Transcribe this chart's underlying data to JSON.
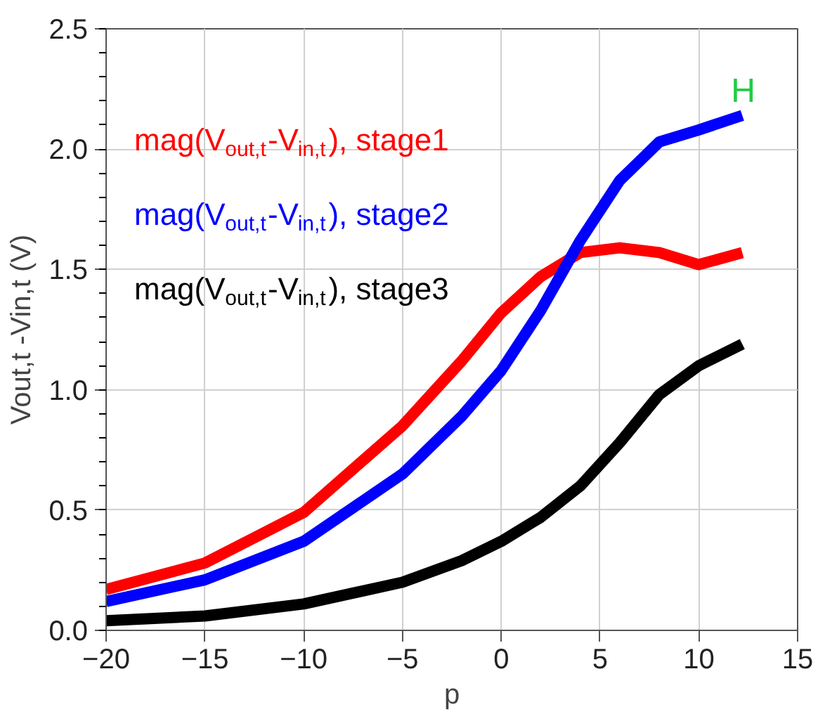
{
  "chart_data": {
    "type": "line",
    "xlabel": "p",
    "ylabel": "Vout,t -Vin,t (V)",
    "xlim": [
      -20,
      15
    ],
    "ylim": [
      0,
      2.5
    ],
    "xticks": [
      -20,
      -15,
      -10,
      -5,
      0,
      5,
      10,
      15
    ],
    "yticks": [
      {
        "value": 0,
        "label": "0.0"
      },
      {
        "value": 0.5,
        "label": "0.5"
      },
      {
        "value": 1,
        "label": "1.0"
      },
      {
        "value": 1.5,
        "label": "1.5"
      },
      {
        "value": 2,
        "label": "2.0"
      },
      {
        "value": 2.5,
        "label": "2.5"
      }
    ],
    "grid": true,
    "legend": "top left",
    "line_style": "solid",
    "marker": "none",
    "annotations": [
      "H"
    ],
    "x": [
      -20,
      -15,
      -10,
      -5,
      -2,
      0,
      2,
      4,
      6,
      8,
      10,
      12.2
    ],
    "series": [
      {
        "name": "mag(V$_{out,t}$-V$_{in,t}$), stage1",
        "color": "#ff0000",
        "values": [
          0.17,
          0.28,
          0.49,
          0.85,
          1.12,
          1.32,
          1.47,
          1.57,
          1.59,
          1.57,
          1.52,
          1.57
        ]
      },
      {
        "name": "mag(V$_{out,t}$-V$_{in,t}$), stage2",
        "color": "#0000ff",
        "values": [
          0.12,
          0.21,
          0.37,
          0.65,
          0.89,
          1.08,
          1.33,
          1.62,
          1.87,
          2.03,
          2.08,
          2.14
        ]
      },
      {
        "name": "mag(V$_{out,t}$-V$_{in,t}$), stage3",
        "color": "#000000",
        "values": [
          0.04,
          0.06,
          0.11,
          0.2,
          0.29,
          0.37,
          0.47,
          0.6,
          0.78,
          0.98,
          1.1,
          1.19
        ]
      }
    ]
  }
}
